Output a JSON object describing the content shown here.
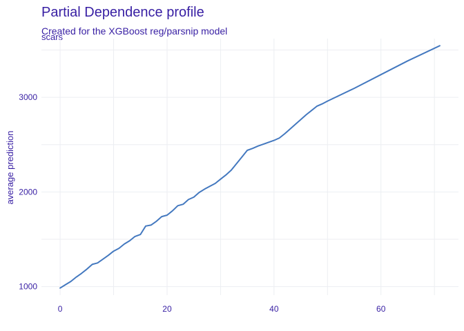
{
  "title": "Partial Dependence profile",
  "subtitle": "Created for the XGBoost reg/parsnip model",
  "facet_label": "scars",
  "colors": {
    "title": "#371ea3",
    "line": "#4378bf",
    "grid": "#eceef2"
  },
  "chart_data": {
    "type": "line",
    "title": "Partial Dependence profile",
    "subtitle": "Created for the XGBoost reg/parsnip model",
    "xlabel": "",
    "ylabel": "average prediction",
    "xlim": [
      -3.5,
      74.5
    ],
    "ylim": [
      910,
      3620
    ],
    "x_ticks": [
      0,
      20,
      40,
      60
    ],
    "y_ticks": [
      1000,
      2000,
      3000
    ],
    "grid": true,
    "series": [
      {
        "name": "scars",
        "x": [
          0,
          1,
          2,
          3,
          4,
          5,
          6,
          7,
          8,
          9,
          10,
          11,
          12,
          13,
          14,
          15,
          16,
          17,
          18,
          19,
          20,
          21,
          22,
          23,
          24,
          25,
          26,
          27,
          28,
          29,
          30,
          31,
          32,
          33,
          34,
          35,
          36,
          37,
          38,
          39,
          40,
          41,
          42,
          43,
          44,
          45,
          46,
          47,
          48,
          49,
          50,
          55,
          60,
          65,
          71
        ],
        "y": [
          985,
          1020,
          1055,
          1100,
          1140,
          1185,
          1235,
          1250,
          1290,
          1330,
          1375,
          1405,
          1450,
          1485,
          1530,
          1550,
          1640,
          1650,
          1690,
          1740,
          1755,
          1800,
          1855,
          1870,
          1920,
          1945,
          1995,
          2030,
          2060,
          2090,
          2135,
          2180,
          2230,
          2300,
          2370,
          2440,
          2460,
          2485,
          2505,
          2525,
          2545,
          2570,
          2615,
          2665,
          2715,
          2765,
          2815,
          2860,
          2905,
          2930,
          2960,
          3095,
          3240,
          3385,
          3545
        ]
      }
    ]
  }
}
